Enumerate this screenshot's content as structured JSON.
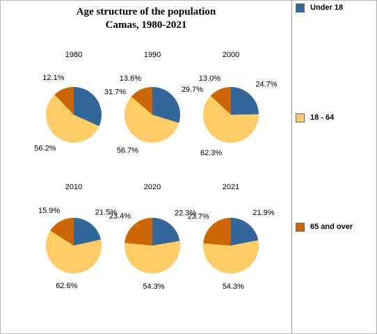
{
  "title": {
    "line1": "Age structure of the population",
    "line2": "Camas, 1980-2021"
  },
  "legend": [
    {
      "label": "Under 18",
      "color": "#336699"
    },
    {
      "label": "18 - 64",
      "color": "#FFCC66"
    },
    {
      "label": "65 and over",
      "color": "#CC6600"
    }
  ],
  "chart_data": {
    "type": "pie",
    "title": "Age structure of the population Camas, 1980-2021",
    "categories": [
      "Under 18",
      "18 - 64",
      "65 and over"
    ],
    "colors": [
      "#336699",
      "#FFCC66",
      "#CC6600"
    ],
    "series": [
      {
        "name": "1980",
        "values": [
          31.7,
          56.2,
          12.1
        ]
      },
      {
        "name": "1990",
        "values": [
          29.7,
          56.7,
          13.6
        ]
      },
      {
        "name": "2000",
        "values": [
          24.7,
          62.3,
          13.0
        ]
      },
      {
        "name": "2010",
        "values": [
          21.5,
          62.6,
          15.9
        ]
      },
      {
        "name": "2020",
        "values": [
          22.3,
          54.3,
          23.4
        ]
      },
      {
        "name": "2021",
        "values": [
          21.9,
          54.3,
          23.7
        ]
      }
    ]
  }
}
